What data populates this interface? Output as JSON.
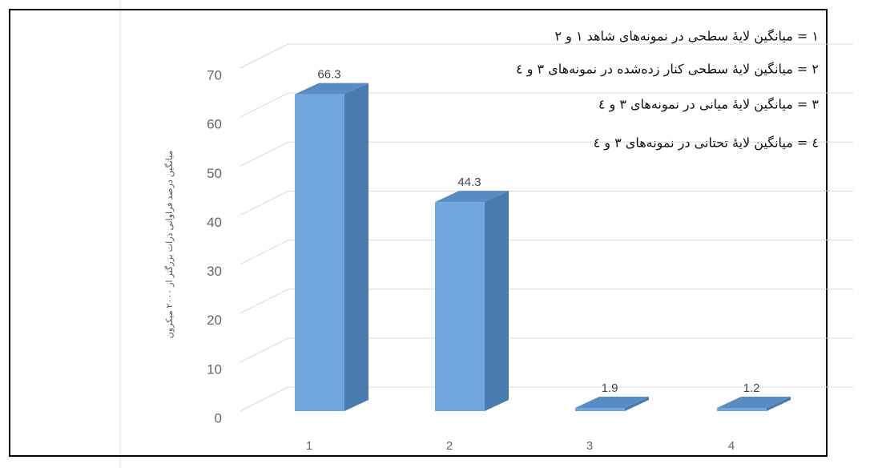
{
  "chart_data": {
    "type": "bar3d",
    "y_label": "میانگین درصد فراوانی ذرات بزرگتر از ۲۰۰۰ میکرون",
    "annotations": [
      "۱ = میانگین لایهٔ سطحی در نمونه‌های شاهد ۱ و ۲",
      "۲ = میانگین لایهٔ سطحی کنار زده‌شده در نمونه‌های ۳ و ٤",
      "۳ = میانگین لایهٔ میانی در نمونه‌های ۳ و ٤",
      "٤ = میانگین لایهٔ تحتانی در نمونه‌های ۳ و ٤"
    ],
    "categories": [
      "1",
      "2",
      "3",
      "4"
    ],
    "values": [
      66.3,
      44.3,
      1.9,
      1.2
    ],
    "color": "#6fa6de",
    "ylim": [
      0,
      70
    ],
    "yticks": [
      0,
      10,
      20,
      30,
      40,
      50,
      60,
      70
    ],
    "grid": true
  }
}
